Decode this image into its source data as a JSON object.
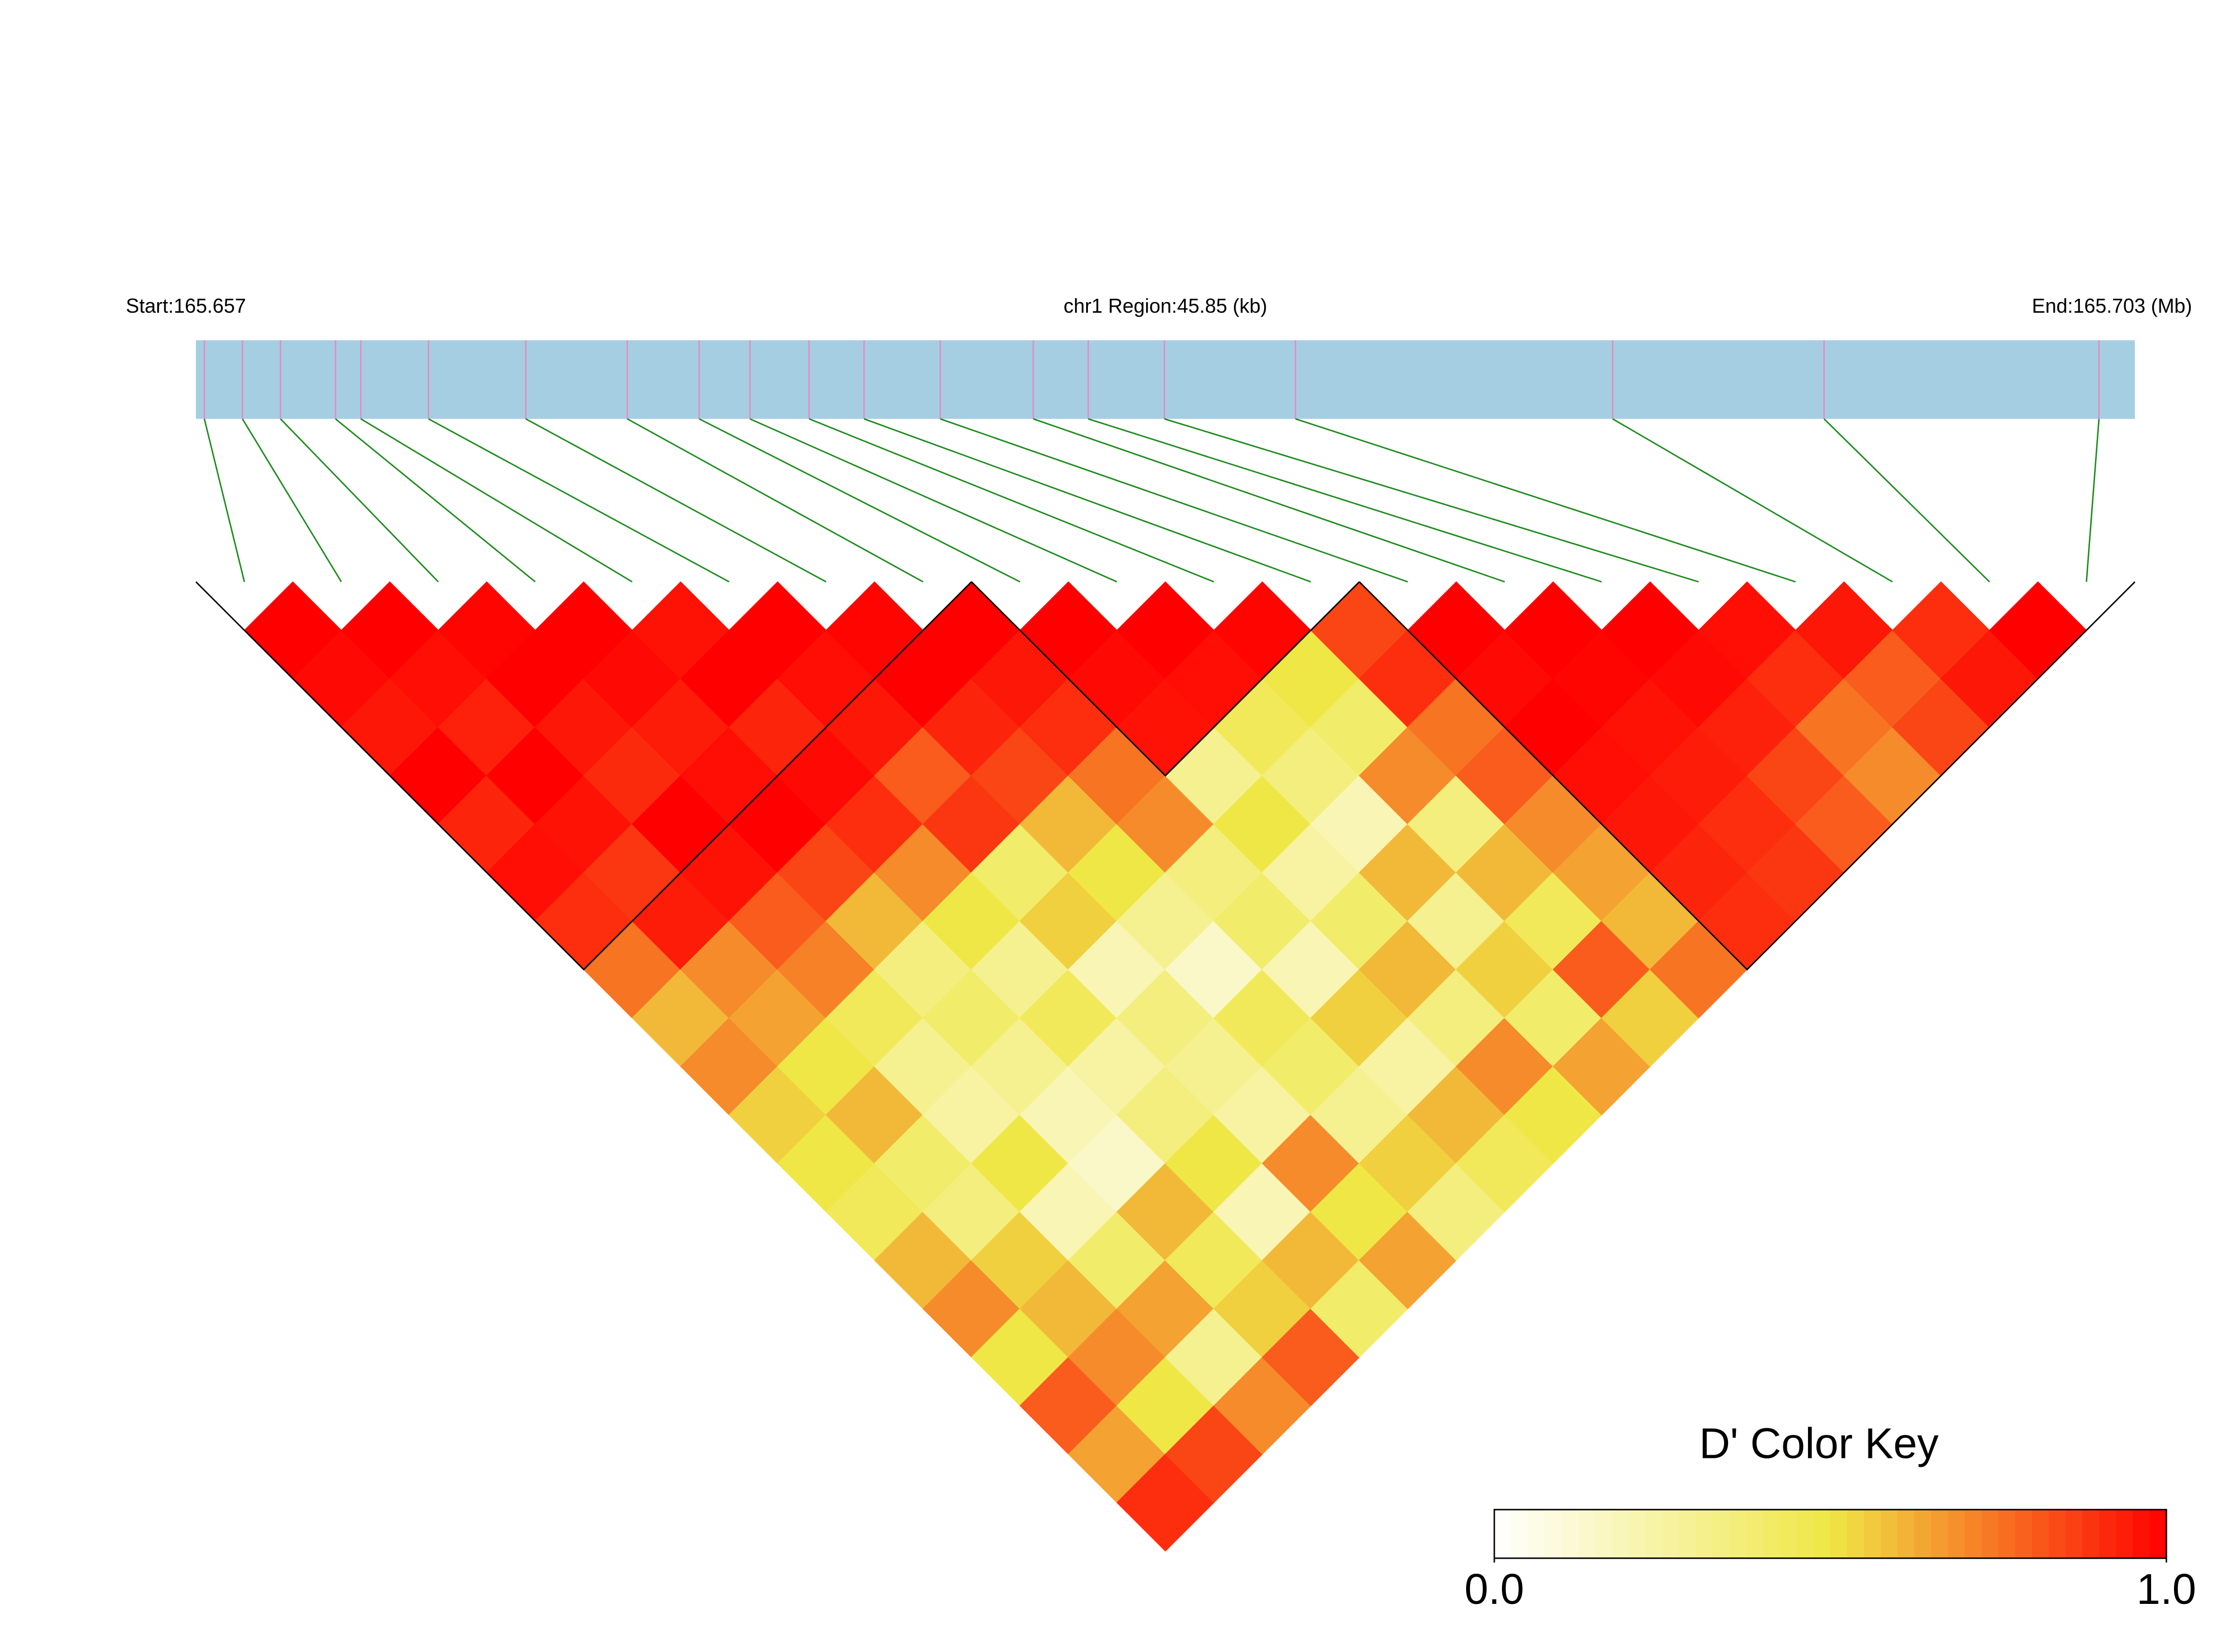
{
  "chart_data": {
    "type": "ld-heatmap",
    "start_label": "Start:165.657",
    "region_label": "chr1 Region:45.85 (kb)",
    "end_label": "End:165.703 (Mb)",
    "key_title": "D' Color Key",
    "xlim": [
      165.657,
      165.70285
    ],
    "positions": [
      165.6572,
      165.6581,
      165.659,
      165.6603,
      165.6609,
      165.6625,
      165.6648,
      165.6672,
      165.6689,
      165.6701,
      165.6715,
      165.6728,
      165.6746,
      165.6768,
      165.6781,
      165.6799,
      165.683,
      165.6905,
      165.6955,
      165.702
    ],
    "dprime": [
      [
        1,
        0.98,
        0.95,
        1,
        0.92,
        0.97,
        0.9,
        0.75,
        0.6,
        0.7,
        0.55,
        0.5,
        0.45,
        0.6,
        0.7,
        0.5,
        0.8,
        0.65,
        0.9
      ],
      [
        1,
        0.97,
        0.93,
        1,
        0.96,
        0.88,
        0.94,
        0.7,
        0.65,
        0.5,
        0.6,
        0.4,
        0.35,
        0.55,
        0.6,
        0.7,
        0.5,
        0.85
      ],
      [
        0.99,
        1,
        0.95,
        0.91,
        1,
        0.96,
        0.8,
        0.72,
        0.45,
        0.3,
        0.25,
        0.5,
        0.2,
        0.4,
        0.65,
        0.3,
        0.7
      ],
      [
        1,
        0.98,
        0.94,
        0.97,
        1,
        0.85,
        0.6,
        0.35,
        0.4,
        0.3,
        0.2,
        0.15,
        0.6,
        0.45,
        0.55,
        0.8
      ],
      [
        0.96,
        1,
        0.92,
        0.98,
        0.9,
        0.7,
        0.5,
        0.3,
        0.45,
        0.25,
        0.35,
        0.5,
        0.2,
        0.6,
        0.4
      ],
      [
        1,
        0.97,
        0.95,
        0.8,
        0.88,
        0.4,
        0.55,
        0.2,
        0.35,
        0.3,
        0.25,
        0.7,
        0.5,
        0.65
      ],
      [
        0.99,
        1,
        0.92,
        0.85,
        0.6,
        0.5,
        0.3,
        0.15,
        0.45,
        0.4,
        0.3,
        0.55,
        0.35
      ],
      [
        1,
        0.95,
        0.9,
        0.75,
        0.7,
        0.35,
        0.4,
        0.2,
        0.55,
        0.25,
        0.6,
        0.45
      ],
      [
        1,
        0.98,
        0.96,
        0.3,
        0.5,
        0.25,
        0.4,
        0.6,
        0.35,
        0.7,
        0.5
      ],
      [
        1,
        0.97,
        0.45,
        0.35,
        0.2,
        0.6,
        0.3,
        0.55,
        0.4,
        0.65
      ],
      [
        0.99,
        0.5,
        0.4,
        0.7,
        0.35,
        0.6,
        0.45,
        0.8,
        0.55
      ],
      [
        0.85,
        0.9,
        0.75,
        0.8,
        0.7,
        0.65,
        0.6,
        0.75
      ],
      [
        1,
        0.98,
        1,
        0.97,
        0.95,
        0.92,
        0.9
      ],
      [
        1,
        0.99,
        0.96,
        0.94,
        0.9,
        0.88
      ],
      [
        1,
        0.98,
        0.93,
        0.85,
        0.8
      ],
      [
        0.97,
        0.9,
        0.75,
        0.7
      ],
      [
        0.95,
        0.8,
        0.85
      ],
      [
        0.9,
        0.95
      ],
      [
        1
      ]
    ],
    "blocks": [
      [
        0,
        7
      ],
      [
        8,
        11
      ],
      [
        12,
        19
      ]
    ],
    "colors": [
      "#ffffff",
      "#efe746",
      "#ff0000"
    ],
    "bar_color": "#a6cee3",
    "marker_color": "#e78ac3",
    "link_color": "#1a8a1a",
    "keylim": [
      0,
      1
    ],
    "keyticks": [
      {
        "value": 0,
        "label": "0.0"
      },
      {
        "value": 1,
        "label": "1.0"
      }
    ]
  }
}
